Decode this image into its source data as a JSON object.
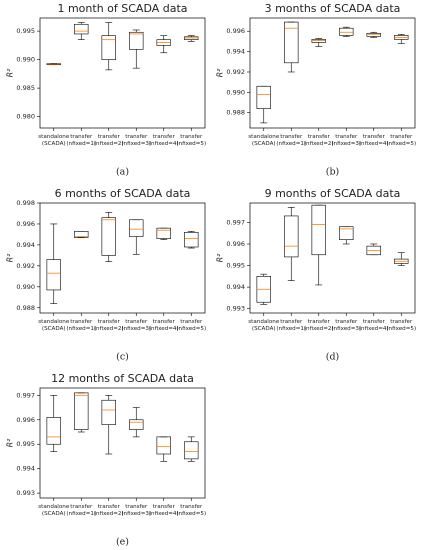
{
  "chart_data": [
    {
      "type": "box",
      "title": "1 month of SCADA data",
      "caption": "(a)",
      "ylabel": "R²",
      "categories": [
        "standalone (SCADA)",
        "transfer (nfixed=1)",
        "transfer (nfixed=2)",
        "transfer (nfixed=3)",
        "transfer (nfixed=4)",
        "transfer (nfixed=5)"
      ],
      "boxes": [
        {
          "whislo": 0.9891,
          "q1": 0.9891,
          "med": 0.9892,
          "q3": 0.9893,
          "whishi": 0.9893
        },
        {
          "whislo": 0.9935,
          "q1": 0.9945,
          "med": 0.995,
          "q3": 0.9962,
          "whishi": 0.9965
        },
        {
          "whislo": 0.9882,
          "q1": 0.99,
          "med": 0.9935,
          "q3": 0.9942,
          "whishi": 0.9965
        },
        {
          "whislo": 0.9885,
          "q1": 0.9918,
          "med": 0.9945,
          "q3": 0.9948,
          "whishi": 0.9952
        },
        {
          "whislo": 0.9912,
          "q1": 0.9925,
          "med": 0.993,
          "q3": 0.9935,
          "whishi": 0.9942
        },
        {
          "whislo": 0.9932,
          "q1": 0.9935,
          "med": 0.9938,
          "q3": 0.994,
          "whishi": 0.9942
        }
      ],
      "ylim": [
        0.978,
        0.9973
      ],
      "yticks": [
        {
          "value": 0.98,
          "label": "0.980"
        },
        0.985,
        {
          "value": 0.99,
          "label": "0.990"
        },
        0.995
      ],
      "median_color": "#ff7f0e",
      "box_color": "#000000"
    },
    {
      "type": "box",
      "title": "3 months of SCADA data",
      "caption": "(b)",
      "ylabel": "R²",
      "categories": [
        "standalone (SCADA)",
        "transfer (nfixed=1)",
        "transfer (nfixed=2)",
        "transfer (nfixed=3)",
        "transfer (nfixed=4)",
        "transfer (nfixed=5)"
      ],
      "boxes": [
        {
          "whislo": 0.987,
          "q1": 0.9884,
          "med": 0.9898,
          "q3": 0.9906,
          "whishi": 0.9906
        },
        {
          "whislo": 0.992,
          "q1": 0.9929,
          "med": 0.9963,
          "q3": 0.9969,
          "whishi": 0.9969
        },
        {
          "whislo": 0.9945,
          "q1": 0.9949,
          "med": 0.9951,
          "q3": 0.9952,
          "whishi": 0.9953
        },
        {
          "whislo": 0.9955,
          "q1": 0.9956,
          "med": 0.9959,
          "q3": 0.9963,
          "whishi": 0.9964
        },
        {
          "whislo": 0.9954,
          "q1": 0.9955,
          "med": 0.9957,
          "q3": 0.9958,
          "whishi": 0.9959
        },
        {
          "whislo": 0.9948,
          "q1": 0.9952,
          "med": 0.9954,
          "q3": 0.9956,
          "whishi": 0.9957
        }
      ],
      "ylim": [
        0.9865,
        0.9973
      ],
      "yticks": [
        0.988,
        {
          "value": 0.99,
          "label": "0.990"
        },
        0.992,
        0.994,
        0.996
      ],
      "median_color": "#ff7f0e",
      "box_color": "#000000"
    },
    {
      "type": "box",
      "title": "6 months of SCADA data",
      "caption": "(c)",
      "ylabel": "R²",
      "categories": [
        "standalone (SCADA)",
        "transfer (nfixed=1)",
        "transfer (nfixed=2)",
        "transfer (nfixed=3)",
        "transfer (nfixed=4)",
        "transfer (nfixed=5)"
      ],
      "boxes": [
        {
          "whislo": 0.9884,
          "q1": 0.9897,
          "med": 0.9913,
          "q3": 0.9926,
          "whishi": 0.996
        },
        {
          "whislo": 0.9947,
          "q1": 0.9947,
          "med": 0.9948,
          "q3": 0.9953,
          "whishi": 0.9953
        },
        {
          "whislo": 0.9924,
          "q1": 0.993,
          "med": 0.9964,
          "q3": 0.9966,
          "whishi": 0.9971
        },
        {
          "whislo": 0.9931,
          "q1": 0.9948,
          "med": 0.9955,
          "q3": 0.9964,
          "whishi": 0.9964
        },
        {
          "whislo": 0.9945,
          "q1": 0.9946,
          "med": 0.9954,
          "q3": 0.9956,
          "whishi": 0.9956
        },
        {
          "whislo": 0.9937,
          "q1": 0.9938,
          "med": 0.9946,
          "q3": 0.9952,
          "whishi": 0.9953
        }
      ],
      "ylim": [
        0.9875,
        0.998
      ],
      "yticks": [
        0.988,
        {
          "value": 0.99,
          "label": "0.990"
        },
        0.992,
        0.994,
        0.996,
        0.998
      ],
      "median_color": "#ff7f0e",
      "box_color": "#000000"
    },
    {
      "type": "box",
      "title": "9 months of SCADA data",
      "caption": "(d)",
      "ylabel": "R²",
      "categories": [
        "standalone (SCADA)",
        "transfer (nfixed=1)",
        "transfer (nfixed=2)",
        "transfer (nfixed=3)",
        "transfer (nfixed=4)",
        "transfer (nfixed=5)"
      ],
      "boxes": [
        {
          "whislo": 0.9932,
          "q1": 0.9933,
          "med": 0.9939,
          "q3": 0.9945,
          "whishi": 0.9946
        },
        {
          "whislo": 0.9943,
          "q1": 0.9954,
          "med": 0.9959,
          "q3": 0.9973,
          "whishi": 0.9977
        },
        {
          "whislo": 0.9941,
          "q1": 0.9955,
          "med": 0.9969,
          "q3": 0.9978,
          "whishi": 0.9978
        },
        {
          "whislo": 0.996,
          "q1": 0.9962,
          "med": 0.9967,
          "q3": 0.9968,
          "whishi": 0.9968
        },
        {
          "whislo": 0.9955,
          "q1": 0.9955,
          "med": 0.9957,
          "q3": 0.9959,
          "whishi": 0.996
        },
        {
          "whislo": 0.995,
          "q1": 0.9951,
          "med": 0.9952,
          "q3": 0.9953,
          "whishi": 0.9956
        }
      ],
      "ylim": [
        0.9928,
        0.9979
      ],
      "yticks": [
        0.993,
        0.994,
        0.995,
        0.996,
        0.997
      ],
      "median_color": "#ff7f0e",
      "box_color": "#000000"
    },
    {
      "type": "box",
      "title": "12 months of SCADA data",
      "caption": "(e)",
      "ylabel": "R²",
      "categories": [
        "standalone (SCADA)",
        "transfer (nfixed=1)",
        "transfer (nfixed=2)",
        "transfer (nfixed=3)",
        "transfer (nfixed=4)",
        "transfer (nfixed=5)"
      ],
      "boxes": [
        {
          "whislo": 0.9947,
          "q1": 0.995,
          "med": 0.9953,
          "q3": 0.9961,
          "whishi": 0.997
        },
        {
          "whislo": 0.9955,
          "q1": 0.9956,
          "med": 0.997,
          "q3": 0.9971,
          "whishi": 0.9971
        },
        {
          "whislo": 0.9946,
          "q1": 0.9958,
          "med": 0.9964,
          "q3": 0.9968,
          "whishi": 0.997
        },
        {
          "whislo": 0.9953,
          "q1": 0.9956,
          "med": 0.9959,
          "q3": 0.996,
          "whishi": 0.9965
        },
        {
          "whislo": 0.9943,
          "q1": 0.9946,
          "med": 0.9949,
          "q3": 0.9953,
          "whishi": 0.9953
        },
        {
          "whislo": 0.9943,
          "q1": 0.9944,
          "med": 0.9947,
          "q3": 0.9951,
          "whishi": 0.9953
        }
      ],
      "ylim": [
        0.9928,
        0.9973
      ],
      "yticks": [
        0.993,
        0.994,
        0.995,
        0.996,
        0.997
      ],
      "median_color": "#ff7f0e",
      "box_color": "#000000"
    }
  ]
}
